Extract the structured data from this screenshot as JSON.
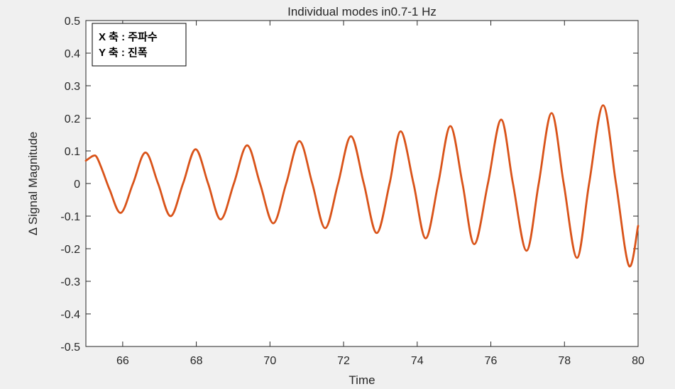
{
  "chart_data": {
    "type": "line",
    "title": "Individual modes in0.7-1 Hz",
    "xlabel": "Time",
    "ylabel": "Δ Signal Magnitude",
    "xlim": [
      65,
      80
    ],
    "ylim": [
      -0.5,
      0.5
    ],
    "x_ticks": [
      66,
      68,
      70,
      72,
      74,
      76,
      78,
      80
    ],
    "y_ticks": [
      0.5,
      0.4,
      0.3,
      0.2,
      0.1,
      0,
      -0.1,
      -0.2,
      -0.3,
      -0.4,
      -0.5
    ],
    "grid": false,
    "annotation_box": {
      "line1": "X 축 : 주파수",
      "line2": "Y 축 : 진폭"
    },
    "line_color": "#d95319",
    "series": [
      {
        "x": [
          65.0,
          65.2,
          65.3,
          65.45,
          65.65,
          65.95,
          66.28,
          66.62,
          66.96,
          67.3,
          67.64,
          67.98,
          68.32,
          68.66,
          69.02,
          69.38,
          69.73,
          70.09,
          70.44,
          70.8,
          71.15,
          71.5,
          71.85,
          72.2,
          72.55,
          72.9,
          73.25,
          73.55,
          73.9,
          74.23,
          74.57,
          74.9,
          75.23,
          75.55,
          75.92,
          76.28,
          76.6,
          76.97,
          77.3,
          77.65,
          77.98,
          78.34,
          78.67,
          79.05,
          79.4,
          79.75,
          80.0
        ],
        "y": [
          0.07,
          0.085,
          0.08,
          0.04,
          -0.02,
          -0.09,
          0.0,
          0.095,
          0.0,
          -0.1,
          0.0,
          0.105,
          0.0,
          -0.11,
          0.0,
          0.117,
          0.0,
          -0.122,
          0.0,
          0.13,
          0.0,
          -0.137,
          0.0,
          0.145,
          0.0,
          -0.152,
          0.0,
          0.16,
          0.0,
          -0.168,
          0.0,
          0.176,
          0.0,
          -0.186,
          0.0,
          0.196,
          0.0,
          -0.206,
          0.0,
          0.216,
          0.0,
          -0.228,
          0.0,
          0.24,
          0.0,
          -0.252,
          -0.13
        ]
      }
    ]
  }
}
